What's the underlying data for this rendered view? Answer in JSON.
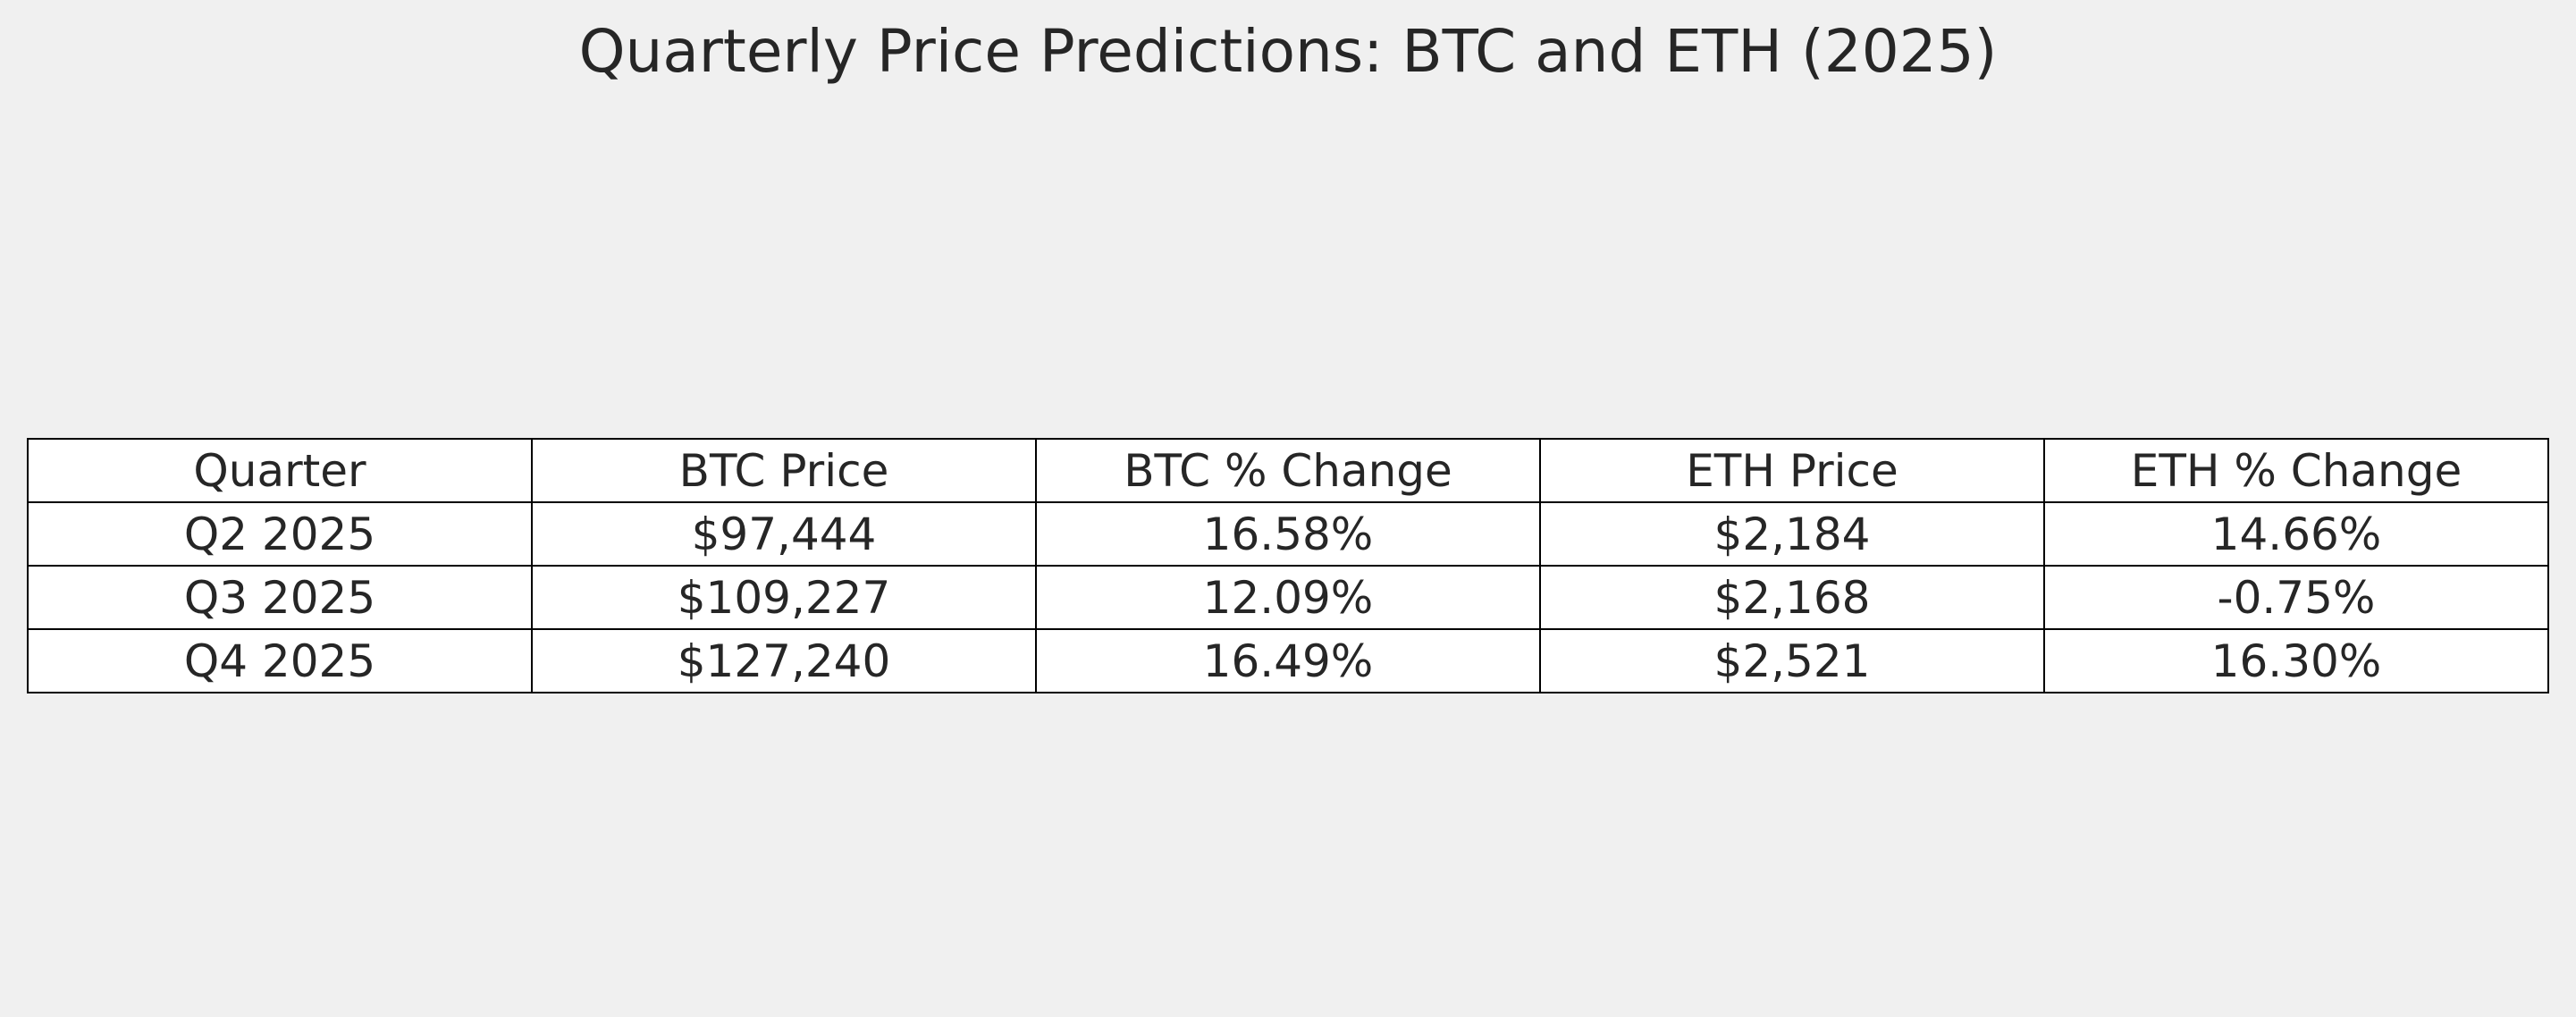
{
  "chart_data": {
    "type": "table",
    "title": "Quarterly Price Predictions: BTC and ETH (2025)",
    "columns": [
      "Quarter",
      "BTC Price",
      "BTC % Change",
      "ETH Price",
      "ETH % Change"
    ],
    "rows": [
      [
        "Q2 2025",
        "$97,444",
        "16.58%",
        "$2,184",
        "14.66%"
      ],
      [
        "Q3 2025",
        "$109,227",
        "12.09%",
        "$2,168",
        "-0.75%"
      ],
      [
        "Q4 2025",
        "$127,240",
        "16.49%",
        "$2,521",
        "16.30%"
      ]
    ]
  },
  "colors": {
    "background": "#f0f0f0",
    "cell_background": "#ffffff",
    "border": "#000000",
    "text": "#262626"
  }
}
